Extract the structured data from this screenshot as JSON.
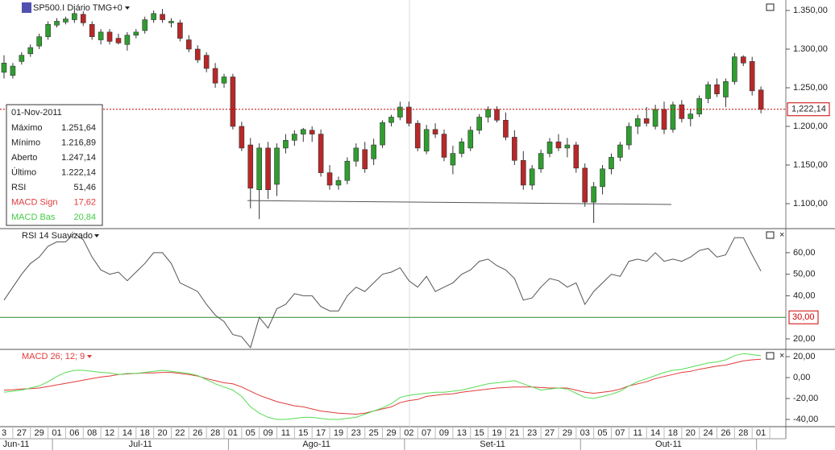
{
  "chart_data": [
    {
      "type": "candlestick",
      "title": "SP500.I Diário TMG+0",
      "categories": [
        "3",
        null,
        "27",
        null,
        "29",
        null,
        "01",
        null,
        "06",
        null,
        "08",
        null,
        "12",
        null,
        "14",
        null,
        "18",
        null,
        "20",
        null,
        "22",
        null,
        "26",
        null,
        "28",
        null,
        "01",
        null,
        "05",
        null,
        "09",
        null,
        "11",
        null,
        "15",
        null,
        "17",
        null,
        "19",
        null,
        "23",
        null,
        "25",
        null,
        "29",
        null,
        "02",
        null,
        "07",
        null,
        "09",
        null,
        "13",
        null,
        "15",
        null,
        "19",
        null,
        "21",
        null,
        "23",
        null,
        "27",
        null,
        "29",
        null,
        "03",
        null,
        "05",
        null,
        "07",
        null,
        "11",
        null,
        "14",
        null,
        "18",
        null,
        "20",
        null,
        "24",
        null,
        "26",
        null,
        "28",
        null,
        "01"
      ],
      "months": [
        "Jun-11",
        "Jul-11",
        "Ago-11",
        "Set-11",
        "Out-11"
      ],
      "open": [
        1270,
        1266,
        1284,
        1294,
        1304,
        1316,
        1331,
        1335,
        1338,
        1345,
        1332,
        1312,
        1322,
        1314,
        1306,
        1318,
        1324,
        1338,
        1345,
        1334,
        1334,
        1312,
        1300,
        1292,
        1275,
        1256,
        1264,
        1200,
        1176,
        1118,
        1172,
        1125,
        1172,
        1182,
        1190,
        1195,
        1190,
        1140,
        1124,
        1130,
        1155,
        1170,
        1158,
        1176,
        1205,
        1212,
        1225,
        1204,
        1168,
        1196,
        1190,
        1150,
        1165,
        1172,
        1195,
        1212,
        1222,
        1208,
        1186,
        1156,
        1124,
        1145,
        1165,
        1180,
        1172,
        1176,
        1146,
        1102,
        1122,
        1145,
        1160,
        1176,
        1200,
        1210,
        1200,
        1222,
        1196,
        1228,
        1210,
        1216,
        1236,
        1254,
        1238,
        1258,
        1290,
        1284,
        1247.14
      ],
      "high": [
        1292,
        1282,
        1296,
        1306,
        1320,
        1336,
        1340,
        1342,
        1350,
        1349,
        1336,
        1326,
        1326,
        1320,
        1322,
        1326,
        1342,
        1350,
        1352,
        1340,
        1338,
        1318,
        1305,
        1296,
        1282,
        1268,
        1268,
        1206,
        1185,
        1178,
        1180,
        1178,
        1190,
        1195,
        1198,
        1200,
        1196,
        1150,
        1135,
        1160,
        1178,
        1180,
        1184,
        1208,
        1215,
        1232,
        1232,
        1208,
        1202,
        1204,
        1196,
        1175,
        1185,
        1200,
        1216,
        1226,
        1226,
        1218,
        1195,
        1168,
        1150,
        1170,
        1185,
        1190,
        1185,
        1180,
        1152,
        1128,
        1150,
        1165,
        1180,
        1205,
        1215,
        1225,
        1228,
        1232,
        1232,
        1234,
        1222,
        1240,
        1258,
        1262,
        1262,
        1295,
        1292,
        1290,
        1251.64
      ],
      "low": [
        1262,
        1262,
        1280,
        1290,
        1300,
        1312,
        1328,
        1332,
        1334,
        1330,
        1312,
        1306,
        1306,
        1306,
        1298,
        1314,
        1320,
        1334,
        1334,
        1328,
        1310,
        1296,
        1282,
        1270,
        1250,
        1250,
        1196,
        1168,
        1094,
        1080,
        1106,
        1110,
        1165,
        1175,
        1180,
        1180,
        1135,
        1118,
        1118,
        1125,
        1148,
        1140,
        1150,
        1172,
        1200,
        1208,
        1200,
        1168,
        1164,
        1185,
        1155,
        1138,
        1160,
        1168,
        1190,
        1205,
        1205,
        1182,
        1150,
        1118,
        1118,
        1140,
        1160,
        1168,
        1160,
        1140,
        1096,
        1075,
        1112,
        1138,
        1155,
        1170,
        1190,
        1200,
        1196,
        1190,
        1192,
        1205,
        1200,
        1212,
        1230,
        1238,
        1225,
        1254,
        1278,
        1240,
        1216.89
      ],
      "close": [
        1282,
        1278,
        1292,
        1302,
        1316,
        1332,
        1336,
        1339,
        1346,
        1334,
        1316,
        1322,
        1310,
        1308,
        1318,
        1322,
        1338,
        1346,
        1338,
        1336,
        1314,
        1300,
        1286,
        1275,
        1256,
        1264,
        1200,
        1172,
        1120,
        1172,
        1118,
        1172,
        1182,
        1190,
        1196,
        1190,
        1140,
        1124,
        1130,
        1155,
        1172,
        1145,
        1176,
        1205,
        1212,
        1225,
        1204,
        1172,
        1196,
        1190,
        1160,
        1165,
        1180,
        1195,
        1212,
        1222,
        1208,
        1186,
        1156,
        1124,
        1145,
        1165,
        1180,
        1172,
        1176,
        1146,
        1102,
        1122,
        1145,
        1160,
        1176,
        1200,
        1210,
        1204,
        1222,
        1196,
        1228,
        1210,
        1216,
        1236,
        1254,
        1242,
        1258,
        1290,
        1282,
        1246,
        1222.14
      ],
      "up_color": "#2f9e2f",
      "down_color": "#b82828",
      "ylim": [
        1068.75,
        1363.54
      ],
      "yticks": [
        {
          "value": 1350,
          "label": "1.350,00"
        },
        {
          "value": 1300,
          "label": "1.300,00"
        },
        {
          "value": 1250,
          "label": "1.250,00"
        },
        {
          "value": 1200,
          "label": "1.200,00"
        },
        {
          "value": 1150,
          "label": "1.150,00"
        },
        {
          "value": 1100,
          "label": "1.100,00"
        }
      ],
      "last_price": {
        "value": 1222.14,
        "label": "1,222,14"
      },
      "trendline": [
        1104,
        1099
      ],
      "info": {
        "date": "01-Nov-2011",
        "rows": [
          {
            "label": "Máximo",
            "value": "1.251,64"
          },
          {
            "label": "Mínimo",
            "value": "1.216,89"
          },
          {
            "label": "Aberto",
            "value": "1.247,14"
          },
          {
            "label": "Último",
            "value": "1.222,14"
          },
          {
            "label": "RSI",
            "value": "51,46"
          },
          {
            "label": "MACD Sign",
            "value": "17,62",
            "color": "#e03a3a"
          },
          {
            "label": "MACD Bas",
            "value": "20,84",
            "color": "#44cc44"
          }
        ]
      }
    },
    {
      "type": "line",
      "title": "RSI 14 Suavizado",
      "series": [
        {
          "color": "#555555",
          "values": [
            38,
            44,
            50,
            55,
            58,
            63,
            65,
            65,
            69,
            66,
            58,
            52,
            50,
            51,
            47,
            51,
            55,
            60,
            60,
            55,
            46,
            44,
            42,
            36,
            31,
            28,
            22,
            21,
            16,
            30,
            25,
            34,
            36,
            41,
            40,
            40,
            35,
            33,
            33,
            40,
            44,
            42,
            46,
            50,
            51,
            53,
            47,
            44,
            49,
            42,
            44,
            46,
            50,
            52,
            56,
            57,
            54,
            52,
            48,
            38,
            39,
            44,
            48,
            47,
            44,
            46,
            36,
            42,
            46,
            50,
            49,
            56,
            57,
            56,
            60,
            56,
            57,
            56,
            58,
            61,
            62,
            58,
            59,
            67,
            67,
            59,
            51.46
          ]
        }
      ],
      "ylim": [
        15.5,
        70.8
      ],
      "yticks": [
        {
          "value": 60,
          "label": "60,00"
        },
        {
          "value": 50,
          "label": "50,00"
        },
        {
          "value": 40,
          "label": "40,00"
        },
        {
          "value": 20,
          "label": "20,00"
        }
      ],
      "level": {
        "value": 30,
        "label": "30,00",
        "color": "#2a8a2a"
      }
    },
    {
      "type": "line",
      "title": "MACD 26; 12; 9",
      "series": [
        {
          "color": "#e03a3a",
          "values": [
            -12,
            -11.6,
            -11,
            -10.5,
            -10,
            -8.5,
            -7,
            -5.5,
            -4,
            -2.5,
            -1,
            0.5,
            1.5,
            3,
            3.5,
            4,
            4.5,
            4.5,
            5,
            5,
            4,
            3,
            1.5,
            -1,
            -3,
            -5,
            -6,
            -9,
            -13,
            -17,
            -20,
            -23,
            -25,
            -27,
            -28,
            -30,
            -32,
            -33,
            -34,
            -34.5,
            -35,
            -34,
            -32,
            -30,
            -28,
            -24,
            -22,
            -21,
            -18,
            -17,
            -16,
            -15.5,
            -14,
            -13,
            -12,
            -11,
            -10,
            -9.5,
            -9,
            -9,
            -9,
            -9.5,
            -10,
            -10,
            -10,
            -12,
            -14,
            -15,
            -14,
            -13,
            -11,
            -8,
            -6,
            -4,
            -1,
            1,
            3,
            5,
            6,
            8,
            9.5,
            11,
            12,
            14,
            16,
            17,
            17.62
          ]
        },
        {
          "color": "#55dd55",
          "values": [
            -14,
            -13,
            -12,
            -10,
            -8,
            -4,
            1,
            5,
            7,
            7,
            6,
            5,
            4.5,
            3,
            4,
            4,
            5,
            6,
            7,
            6,
            5,
            4,
            2,
            -2,
            -6,
            -9,
            -12,
            -18,
            -28,
            -34,
            -38,
            -40,
            -40,
            -39,
            -38,
            -38,
            -39,
            -40,
            -40,
            -39,
            -38,
            -35,
            -32,
            -29,
            -25,
            -19,
            -17,
            -16,
            -15,
            -14,
            -14,
            -13,
            -12,
            -10,
            -8,
            -6,
            -5,
            -4,
            -3,
            -6,
            -9,
            -12,
            -11,
            -10,
            -11,
            -15,
            -19,
            -20,
            -18,
            -16,
            -13,
            -8,
            -4,
            -1,
            2,
            5,
            7,
            8,
            10,
            12,
            14,
            15,
            17,
            21,
            23,
            22,
            20.84
          ]
        }
      ],
      "ylim": [
        -46.9,
        26.2
      ],
      "yticks": [
        {
          "value": 20,
          "label": "20,00"
        },
        {
          "value": 0,
          "label": "0,00"
        },
        {
          "value": -20,
          "label": "-20,00"
        },
        {
          "value": -40,
          "label": "-40,00"
        }
      ]
    }
  ]
}
